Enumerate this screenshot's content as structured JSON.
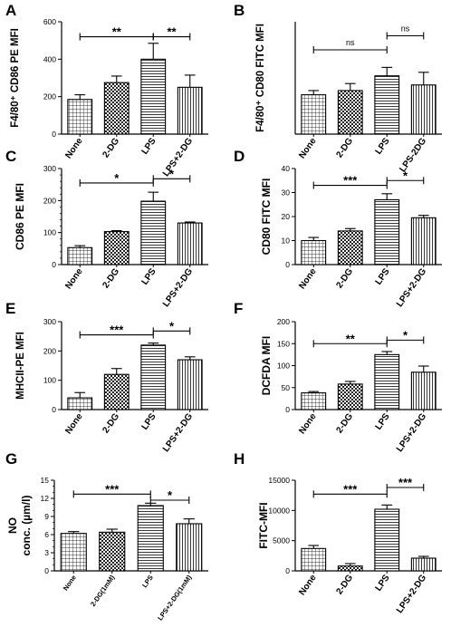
{
  "colors": {
    "ink": "#000000",
    "background": "#ffffff"
  },
  "chart_data": [
    {
      "panel": "A",
      "type": "bar",
      "ylabel": "F4/80⁺ CD86 PE MFI",
      "ylim": [
        0,
        600
      ],
      "yticks": [
        0,
        200,
        400,
        600
      ],
      "categories": [
        "None",
        "2-DG",
        "LPS",
        "LPS+2-DG"
      ],
      "values": [
        185,
        275,
        400,
        250
      ],
      "errors": [
        25,
        35,
        85,
        65
      ],
      "patterns": [
        "grid",
        "check",
        "hlines",
        "vlines"
      ],
      "significance": [
        {
          "from": 0,
          "to": 2,
          "label": "**",
          "y": 520
        },
        {
          "from": 2,
          "to": 3,
          "label": "**",
          "y": 520
        }
      ]
    },
    {
      "panel": "B",
      "type": "bar",
      "ylabel": "F4/80⁺ CD80 FITC MFI",
      "ylim": [
        0,
        800
      ],
      "yticks": [],
      "categories": [
        "None",
        "2-DG",
        "LPS",
        "LPS-2DG"
      ],
      "values": [
        280,
        310,
        415,
        350
      ],
      "errors": [
        30,
        50,
        60,
        90
      ],
      "patterns": [
        "grid",
        "check",
        "hlines",
        "vlines"
      ],
      "significance": [
        {
          "from": 0,
          "to": 2,
          "label": "ns",
          "y": 600
        },
        {
          "from": 2,
          "to": 3,
          "label": "ns",
          "y": 700
        }
      ]
    },
    {
      "panel": "C",
      "type": "bar",
      "ylabel": "CD86 PE MFI",
      "ylim": [
        0,
        300
      ],
      "yticks": [
        0,
        100,
        200,
        300
      ],
      "yticklabels": [
        "0",
        "100",
        "200",
        "300"
      ],
      "minor_ticks": 20,
      "categories": [
        "None",
        "2-DG",
        "LPS",
        "LPS+2-DG"
      ],
      "values": [
        53,
        103,
        198,
        130
      ],
      "errors": [
        6,
        3,
        28,
        3
      ],
      "patterns": [
        "grid",
        "check",
        "hlines",
        "vlines"
      ],
      "significance": [
        {
          "from": 0,
          "to": 2,
          "label": "*",
          "y": 255
        },
        {
          "from": 2,
          "to": 3,
          "label": "*",
          "y": 268
        }
      ]
    },
    {
      "panel": "D",
      "type": "bar",
      "ylabel": "CD80 FITC MFI",
      "ylim": [
        0,
        40
      ],
      "yticks": [
        0,
        10,
        20,
        30,
        40
      ],
      "categories": [
        "None",
        "2-DG",
        "LPS",
        "LPS+2-DG"
      ],
      "values": [
        10,
        14,
        27,
        19.5
      ],
      "errors": [
        1.3,
        1,
        2.5,
        1
      ],
      "patterns": [
        "grid",
        "check",
        "hlines",
        "vlines"
      ],
      "significance": [
        {
          "from": 0,
          "to": 2,
          "label": "***",
          "y": 33
        },
        {
          "from": 2,
          "to": 3,
          "label": "*",
          "y": 35
        }
      ]
    },
    {
      "panel": "E",
      "type": "bar",
      "ylabel": "MHCII-PE MFI",
      "ylim": [
        0,
        300
      ],
      "yticks": [
        0,
        100,
        200,
        300
      ],
      "categories": [
        "None",
        "2-DG",
        "LPS",
        "LPS+2-DG"
      ],
      "values": [
        40,
        120,
        220,
        170
      ],
      "errors": [
        18,
        20,
        7,
        10
      ],
      "patterns": [
        "grid",
        "check",
        "hlines",
        "vlines"
      ],
      "significance": [
        {
          "from": 0,
          "to": 2,
          "label": "***",
          "y": 255
        },
        {
          "from": 2,
          "to": 3,
          "label": "*",
          "y": 268
        }
      ]
    },
    {
      "panel": "F",
      "type": "bar",
      "ylabel": "DCFDA MFI",
      "ylim": [
        0,
        200
      ],
      "yticks": [
        0,
        50,
        100,
        150,
        200
      ],
      "categories": [
        "None",
        "2-DG",
        "LPS",
        "LPS+2-DG"
      ],
      "values": [
        38,
        58,
        125,
        85
      ],
      "errors": [
        3,
        6,
        7,
        14
      ],
      "patterns": [
        "grid",
        "check",
        "hlines",
        "vlines"
      ],
      "significance": [
        {
          "from": 0,
          "to": 2,
          "label": "**",
          "y": 150
        },
        {
          "from": 2,
          "to": 3,
          "label": "*",
          "y": 158
        }
      ]
    },
    {
      "panel": "G",
      "type": "bar",
      "ylabel": "NO conc. (µm/l)",
      "ylabel_lines": [
        "NO",
        "conc. (µm/l)"
      ],
      "ylim": [
        0,
        15
      ],
      "yticks": [
        0,
        3,
        6,
        9,
        12,
        15
      ],
      "minor_ticks": 1,
      "categories": [
        "None",
        "2-DG(1mM)",
        "LPS",
        "LPS+2-DG(1mM)"
      ],
      "values": [
        6.2,
        6.4,
        10.8,
        7.8
      ],
      "errors": [
        0.3,
        0.5,
        0.4,
        0.8
      ],
      "patterns": [
        "grid",
        "check",
        "hlines",
        "vlines"
      ],
      "significance": [
        {
          "from": 0,
          "to": 2,
          "label": "***",
          "y": 12.7
        },
        {
          "from": 2,
          "to": 3,
          "label": "*",
          "y": 11.7
        }
      ]
    },
    {
      "panel": "H",
      "type": "bar",
      "ylabel": "FITC-MFI",
      "ylim": [
        0,
        15000
      ],
      "yticks": [
        0,
        5000,
        10000,
        15000
      ],
      "categories": [
        "None",
        "2-DG",
        "LPS",
        "LPS+2-DG"
      ],
      "values": [
        3700,
        800,
        10200,
        2100
      ],
      "errors": [
        500,
        400,
        700,
        300
      ],
      "patterns": [
        "grid",
        "check",
        "hlines",
        "vlines"
      ],
      "significance": [
        {
          "from": 0,
          "to": 2,
          "label": "***",
          "y": 12700
        },
        {
          "from": 2,
          "to": 3,
          "label": "***",
          "y": 13800
        }
      ]
    }
  ]
}
